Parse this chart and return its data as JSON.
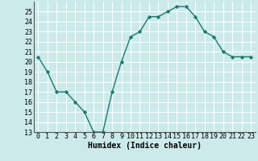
{
  "x": [
    0,
    1,
    2,
    3,
    4,
    5,
    6,
    7,
    8,
    9,
    10,
    11,
    12,
    13,
    14,
    15,
    16,
    17,
    18,
    19,
    20,
    21,
    22,
    23
  ],
  "y": [
    20.5,
    19.0,
    17.0,
    17.0,
    16.0,
    15.0,
    13.0,
    13.0,
    17.0,
    20.0,
    22.5,
    23.0,
    24.5,
    24.5,
    25.0,
    25.5,
    25.5,
    24.5,
    23.0,
    22.5,
    21.0,
    20.5,
    20.5,
    20.5
  ],
  "line_color": "#1a7a6e",
  "marker": "D",
  "markersize": 2.2,
  "linewidth": 1.0,
  "xlabel": "Humidex (Indice chaleur)",
  "ylim": [
    13,
    26
  ],
  "yticks": [
    13,
    14,
    15,
    16,
    17,
    18,
    19,
    20,
    21,
    22,
    23,
    24,
    25
  ],
  "xticks": [
    0,
    1,
    2,
    3,
    4,
    5,
    6,
    7,
    8,
    9,
    10,
    11,
    12,
    13,
    14,
    15,
    16,
    17,
    18,
    19,
    20,
    21,
    22,
    23
  ],
  "bg_color": "#cceaea",
  "grid_color": "#b0d8d8",
  "tick_fontsize": 6,
  "label_fontsize": 7
}
